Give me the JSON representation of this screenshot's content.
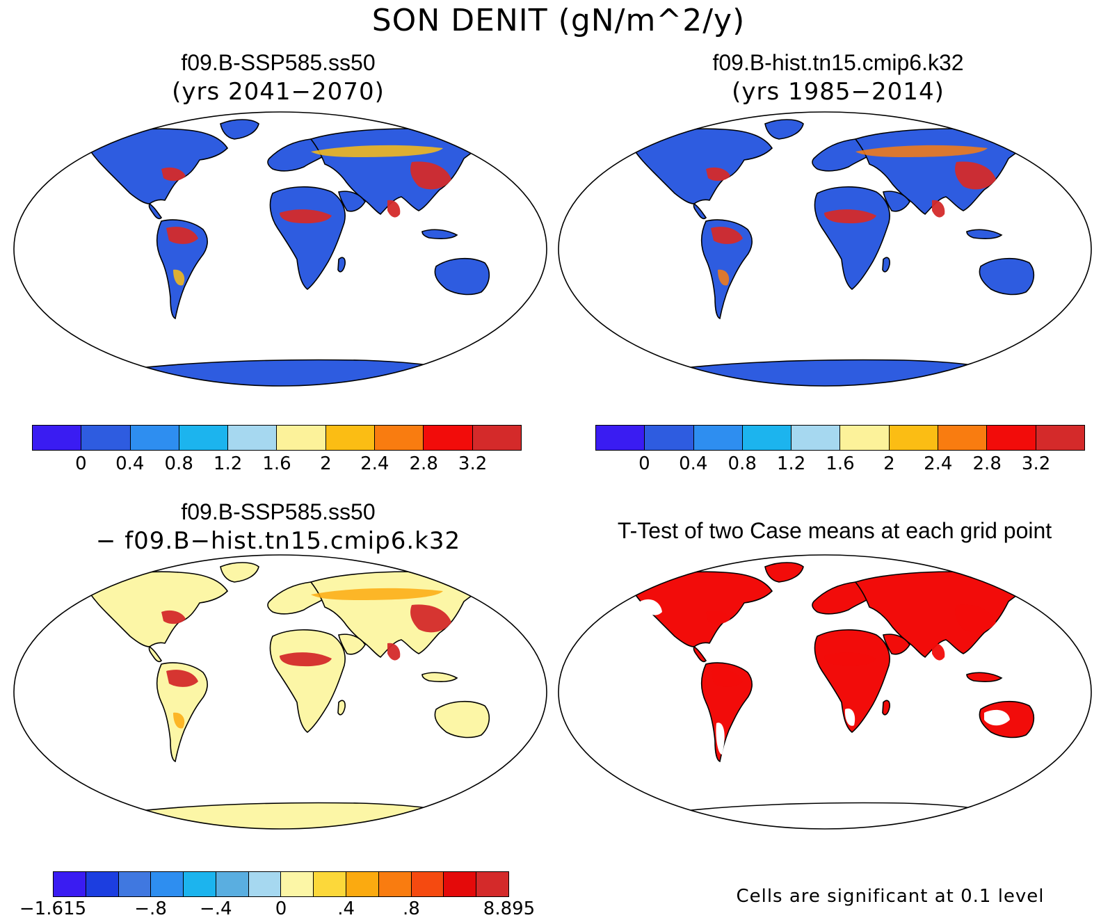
{
  "main_title": "SON DENIT (gN/m^2/y)",
  "panels": {
    "top_left": {
      "title": "f09.B-SSP585.ss50",
      "subtitle": "(yrs 2041−2070)"
    },
    "top_right": {
      "title": "f09.B-hist.tn15.cmip6.k32",
      "subtitle": "(yrs 1985−2014)"
    },
    "bottom_left": {
      "title": "f09.B-SSP585.ss50",
      "subtitle": "− f09.B−hist.tn15.cmip6.k32"
    },
    "bottom_right": {
      "title": "T-Test of two Case means at each grid point"
    }
  },
  "colorbars": {
    "abs": {
      "colors": [
        "#3a1cf2",
        "#2e5ce0",
        "#2e8ef0",
        "#1cb4ee",
        "#a6d8f0",
        "#fcf29a",
        "#fbbd14",
        "#f97c10",
        "#f20c0a",
        "#d42a2a"
      ],
      "labels": [
        "0",
        "0.4",
        "0.8",
        "1.2",
        "1.6",
        "2",
        "2.4",
        "2.8",
        "3.2"
      ]
    },
    "diff": {
      "colors": [
        "#3a1cf2",
        "#1c3ee0",
        "#4078e0",
        "#2e8ef0",
        "#1cb4ee",
        "#5aaee0",
        "#a6d8f0",
        "#fcf6a6",
        "#fcd83a",
        "#fbaa10",
        "#f97c10",
        "#f54a10",
        "#e40a0a",
        "#d42a2a"
      ],
      "labels": [
        "−1.615",
        "−.8",
        "−.4",
        "0",
        ".4",
        ".8",
        "8.895"
      ]
    }
  },
  "significance_note": "Cells are significant at 0.1 level",
  "legend_colors": {
    "significant": "#f20c0a",
    "land_outline": "#000000",
    "ocean": "#ffffff"
  }
}
